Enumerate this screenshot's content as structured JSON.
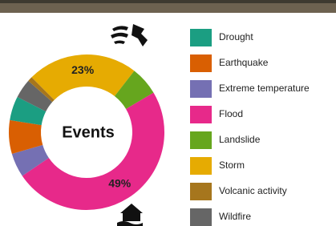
{
  "chart_data": {
    "type": "donut",
    "title": "Events",
    "categories": [
      "Drought",
      "Earthquake",
      "Extreme temperature",
      "Flood",
      "Landslide",
      "Storm",
      "Volcanic activity",
      "Wildfire"
    ],
    "values": [
      5,
      7,
      5,
      49,
      6,
      23,
      1,
      4
    ],
    "value_labels": [
      null,
      null,
      null,
      "49%",
      null,
      "23%",
      null,
      null
    ],
    "colors": [
      "#1b9e82",
      "#d95f02",
      "#7570b3",
      "#e7298a",
      "#66a61e",
      "#e6ab02",
      "#a6761d",
      "#666666"
    ],
    "legend": "right"
  }
}
